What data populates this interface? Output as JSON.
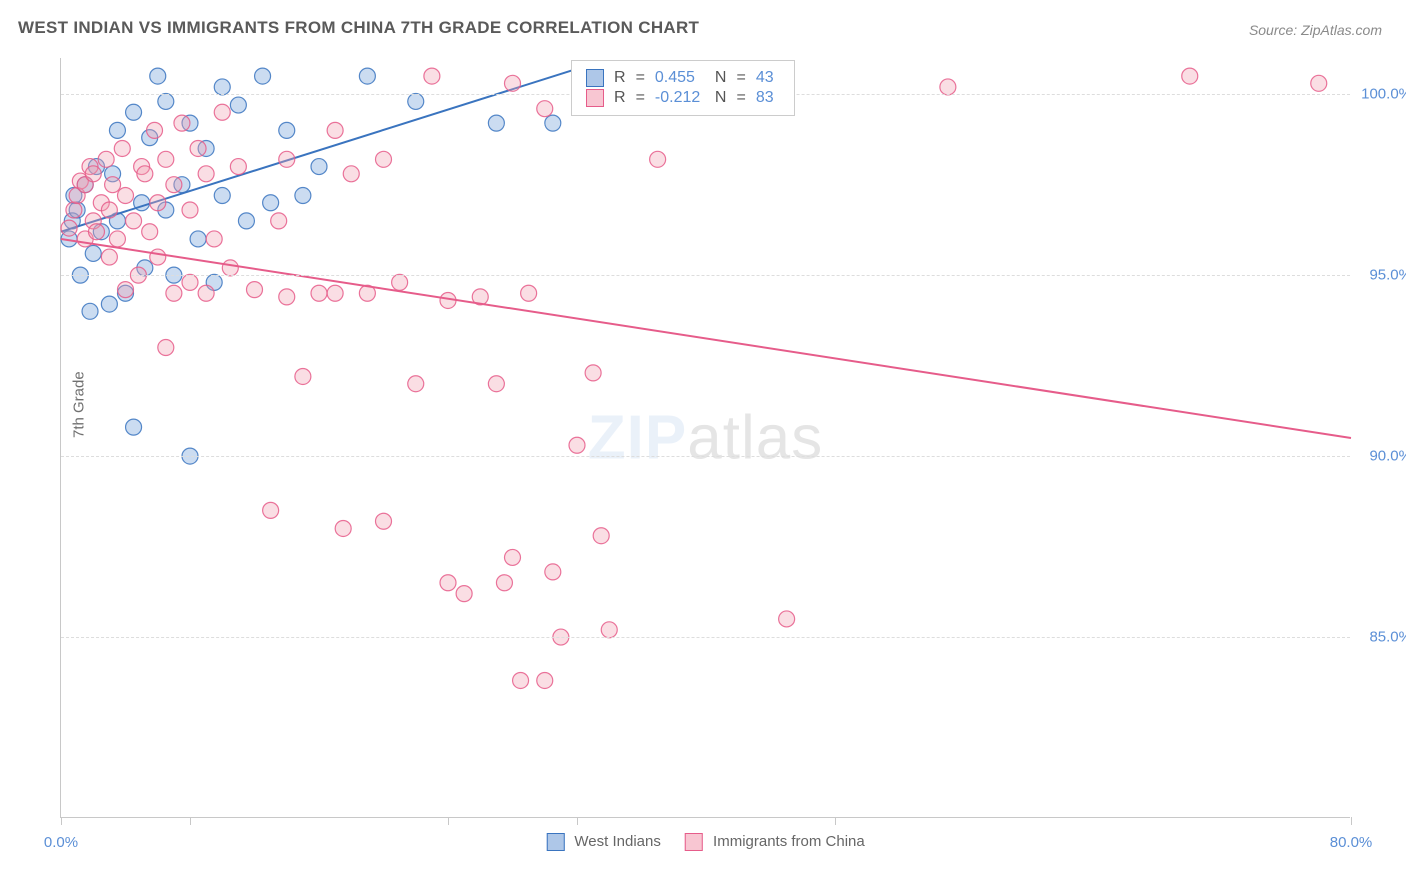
{
  "title": "WEST INDIAN VS IMMIGRANTS FROM CHINA 7TH GRADE CORRELATION CHART",
  "source": "Source: ZipAtlas.com",
  "ylabel": "7th Grade",
  "watermark": {
    "zip": "ZIP",
    "atlas": "atlas"
  },
  "chart": {
    "type": "scatter",
    "xlim": [
      0,
      80
    ],
    "ylim": [
      80,
      101
    ],
    "x_ticks": [
      0,
      8,
      24,
      32,
      48,
      80
    ],
    "x_tick_labels": {
      "0": "0.0%",
      "80": "80.0%"
    },
    "y_ticks": [
      85,
      90,
      95,
      100
    ],
    "y_tick_labels": {
      "85": "85.0%",
      "90": "90.0%",
      "95": "95.0%",
      "100": "100.0%"
    },
    "grid_color": "#dddddd",
    "axis_color": "#c8c8c8",
    "background_color": "#ffffff",
    "marker_radius": 8,
    "marker_fill_opacity": 0.35,
    "marker_stroke_opacity": 0.85,
    "line_width": 2,
    "series": [
      {
        "name": "West Indians",
        "color_fill": "#6a9ad8",
        "color_stroke": "#3a74bf",
        "legend_swatch_fill": "#aec7e8",
        "legend_swatch_stroke": "#3a74bf",
        "R": "0.455",
        "N": "43",
        "trend": {
          "x1": 0,
          "y1": 96.2,
          "x2": 32,
          "y2": 100.7
        },
        "points": [
          [
            0.5,
            96.0
          ],
          [
            0.7,
            96.5
          ],
          [
            0.8,
            97.2
          ],
          [
            1.0,
            96.8
          ],
          [
            1.2,
            95.0
          ],
          [
            1.5,
            97.5
          ],
          [
            1.8,
            94.0
          ],
          [
            2.0,
            95.6
          ],
          [
            2.2,
            98.0
          ],
          [
            2.5,
            96.2
          ],
          [
            3.0,
            94.2
          ],
          [
            3.2,
            97.8
          ],
          [
            3.5,
            99.0
          ],
          [
            3.5,
            96.5
          ],
          [
            4.0,
            94.5
          ],
          [
            4.5,
            90.8
          ],
          [
            4.5,
            99.5
          ],
          [
            5.0,
            97.0
          ],
          [
            5.2,
            95.2
          ],
          [
            5.5,
            98.8
          ],
          [
            6.0,
            100.5
          ],
          [
            6.5,
            96.8
          ],
          [
            6.5,
            99.8
          ],
          [
            7.0,
            95.0
          ],
          [
            7.5,
            97.5
          ],
          [
            8.0,
            99.2
          ],
          [
            8.0,
            90.0
          ],
          [
            8.5,
            96.0
          ],
          [
            9.0,
            98.5
          ],
          [
            9.5,
            94.8
          ],
          [
            10.0,
            97.2
          ],
          [
            10.0,
            100.2
          ],
          [
            11.0,
            99.7
          ],
          [
            11.5,
            96.5
          ],
          [
            12.5,
            100.5
          ],
          [
            13.0,
            97.0
          ],
          [
            14.0,
            99.0
          ],
          [
            15.0,
            97.2
          ],
          [
            16.0,
            98.0
          ],
          [
            19.0,
            100.5
          ],
          [
            22.0,
            99.8
          ],
          [
            27.0,
            99.2
          ],
          [
            30.5,
            99.2
          ]
        ]
      },
      {
        "name": "Immigrants from China",
        "color_fill": "#f2a0b3",
        "color_stroke": "#e65c8a",
        "legend_swatch_fill": "#f8c6d2",
        "legend_swatch_stroke": "#e65c8a",
        "R": "-0.212",
        "N": "83",
        "trend": {
          "x1": 0,
          "y1": 96.0,
          "x2": 80,
          "y2": 90.5
        },
        "points": [
          [
            0.5,
            96.3
          ],
          [
            0.8,
            96.8
          ],
          [
            1.0,
            97.2
          ],
          [
            1.2,
            97.6
          ],
          [
            1.5,
            96.0
          ],
          [
            1.5,
            97.5
          ],
          [
            1.8,
            98.0
          ],
          [
            2.0,
            96.5
          ],
          [
            2.0,
            97.8
          ],
          [
            2.2,
            96.2
          ],
          [
            2.5,
            97.0
          ],
          [
            2.8,
            98.2
          ],
          [
            3.0,
            96.8
          ],
          [
            3.0,
            95.5
          ],
          [
            3.2,
            97.5
          ],
          [
            3.5,
            96.0
          ],
          [
            3.8,
            98.5
          ],
          [
            4.0,
            97.2
          ],
          [
            4.0,
            94.6
          ],
          [
            4.5,
            96.5
          ],
          [
            4.8,
            95.0
          ],
          [
            5.0,
            98.0
          ],
          [
            5.2,
            97.8
          ],
          [
            5.5,
            96.2
          ],
          [
            5.8,
            99.0
          ],
          [
            6.0,
            95.5
          ],
          [
            6.0,
            97.0
          ],
          [
            6.5,
            98.2
          ],
          [
            6.5,
            93.0
          ],
          [
            7.0,
            97.5
          ],
          [
            7.0,
            94.5
          ],
          [
            7.5,
            99.2
          ],
          [
            8.0,
            96.8
          ],
          [
            8.0,
            94.8
          ],
          [
            8.5,
            98.5
          ],
          [
            9.0,
            94.5
          ],
          [
            9.0,
            97.8
          ],
          [
            9.5,
            96.0
          ],
          [
            10.0,
            99.5
          ],
          [
            10.5,
            95.2
          ],
          [
            11.0,
            98.0
          ],
          [
            12.0,
            94.6
          ],
          [
            13.0,
            88.5
          ],
          [
            13.5,
            96.5
          ],
          [
            14.0,
            94.4
          ],
          [
            14.0,
            98.2
          ],
          [
            15.0,
            92.2
          ],
          [
            16.0,
            94.5
          ],
          [
            17.0,
            94.5
          ],
          [
            17.0,
            99.0
          ],
          [
            17.5,
            88.0
          ],
          [
            18.0,
            97.8
          ],
          [
            19.0,
            94.5
          ],
          [
            20.0,
            98.2
          ],
          [
            20.0,
            88.2
          ],
          [
            21.0,
            94.8
          ],
          [
            22.0,
            92.0
          ],
          [
            23.0,
            100.5
          ],
          [
            24.0,
            94.3
          ],
          [
            24.0,
            86.5
          ],
          [
            25.0,
            86.2
          ],
          [
            26.0,
            94.4
          ],
          [
            27.0,
            92.0
          ],
          [
            27.5,
            86.5
          ],
          [
            28.0,
            87.2
          ],
          [
            28.0,
            100.3
          ],
          [
            28.5,
            83.8
          ],
          [
            29.0,
            94.5
          ],
          [
            30.0,
            99.6
          ],
          [
            30.0,
            83.8
          ],
          [
            30.5,
            86.8
          ],
          [
            31.0,
            85.0
          ],
          [
            32.0,
            90.3
          ],
          [
            33.0,
            92.3
          ],
          [
            33.5,
            87.8
          ],
          [
            34.0,
            85.2
          ],
          [
            34.0,
            100.5
          ],
          [
            37.0,
            98.2
          ],
          [
            38.0,
            100.4
          ],
          [
            45.0,
            85.5
          ],
          [
            55.0,
            100.2
          ],
          [
            70.0,
            100.5
          ],
          [
            78.0,
            100.3
          ]
        ]
      }
    ]
  },
  "legend": {
    "series1": "West Indians",
    "series2": "Immigrants from China"
  },
  "corr_labels": {
    "R": "R",
    "eq": "=",
    "N": "N"
  }
}
